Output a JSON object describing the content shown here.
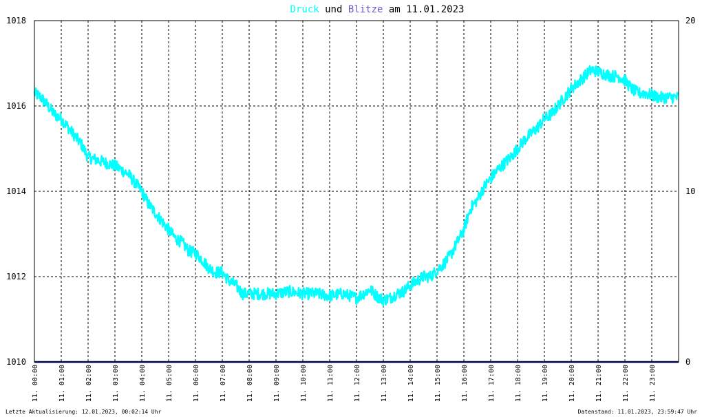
{
  "title": {
    "series1_word": "Druck",
    "connector": " und ",
    "series2_word": "Blitze",
    "date_part": " am 11.01.2023",
    "series1_color": "#00ffff",
    "series2_color": "#6a5acd"
  },
  "footer": {
    "left": "Letzte Aktualisierung: 12.01.2023, 00:02:14 Uhr",
    "right": "Datenstand: 11.01.2023, 23:59:47 Uhr"
  },
  "colors": {
    "pressure": "#00ffff",
    "lightning": "#000080",
    "grid": "#000000",
    "frame": "#000000"
  },
  "chart_data": {
    "type": "line",
    "grid": true,
    "y_left": {
      "min": 1010,
      "max": 1018,
      "ticks": [
        "1010",
        "1012",
        "1014",
        "1016",
        "1018"
      ]
    },
    "y_right": {
      "min": 0,
      "max": 20,
      "ticks": [
        "0",
        "10",
        "20"
      ]
    },
    "x": {
      "min": 0,
      "max": 24,
      "ticks": [
        "11. 00:00",
        "11. 01:00",
        "11. 02:00",
        "11. 03:00",
        "11. 04:00",
        "11. 05:00",
        "11. 06:00",
        "11. 07:00",
        "11. 08:00",
        "11. 09:00",
        "11. 10:00",
        "11. 11:00",
        "11. 12:00",
        "11. 13:00",
        "11. 14:00",
        "11. 15:00",
        "11. 16:00",
        "11. 17:00",
        "11. 18:00",
        "11. 19:00",
        "11. 20:00",
        "11. 21:00",
        "11. 22:00",
        "11. 23:00"
      ]
    },
    "series": [
      {
        "name": "Druck",
        "axis": "left",
        "x": [
          0,
          0.25,
          0.5,
          0.75,
          1,
          1.25,
          1.5,
          1.75,
          2,
          2.25,
          2.5,
          2.75,
          3,
          3.25,
          3.5,
          3.75,
          4,
          4.25,
          4.5,
          4.75,
          5,
          5.25,
          5.5,
          5.75,
          6,
          6.25,
          6.5,
          6.75,
          7,
          7.25,
          7.5,
          7.75,
          8,
          8.5,
          9,
          9.5,
          10,
          10.5,
          11,
          11.5,
          12,
          12.25,
          12.5,
          12.75,
          13,
          13.25,
          13.5,
          13.75,
          14,
          14.25,
          14.5,
          14.75,
          15,
          15.25,
          15.5,
          15.75,
          16,
          16.25,
          16.5,
          16.75,
          17,
          17.25,
          17.5,
          17.75,
          18,
          18.25,
          18.5,
          18.75,
          19,
          19.25,
          19.5,
          19.75,
          20,
          20.25,
          20.5,
          20.75,
          21,
          21.25,
          21.5,
          21.75,
          22,
          22.25,
          22.5,
          22.75,
          23,
          23.25,
          23.5,
          23.75,
          24
        ],
        "values": [
          1016.3,
          1016.2,
          1016.0,
          1015.8,
          1015.7,
          1015.5,
          1015.3,
          1015.1,
          1014.8,
          1014.75,
          1014.7,
          1014.65,
          1014.6,
          1014.5,
          1014.4,
          1014.2,
          1014.0,
          1013.7,
          1013.5,
          1013.3,
          1013.1,
          1012.9,
          1012.8,
          1012.6,
          1012.55,
          1012.4,
          1012.2,
          1012.1,
          1012.1,
          1011.9,
          1011.8,
          1011.6,
          1011.6,
          1011.6,
          1011.6,
          1011.65,
          1011.6,
          1011.6,
          1011.55,
          1011.6,
          1011.5,
          1011.6,
          1011.7,
          1011.55,
          1011.45,
          1011.5,
          1011.6,
          1011.65,
          1011.8,
          1011.9,
          1012.0,
          1012.0,
          1012.15,
          1012.3,
          1012.5,
          1012.8,
          1013.1,
          1013.6,
          1013.8,
          1014.1,
          1014.3,
          1014.5,
          1014.65,
          1014.8,
          1015.0,
          1015.2,
          1015.35,
          1015.5,
          1015.7,
          1015.8,
          1016.0,
          1016.2,
          1016.4,
          1016.55,
          1016.7,
          1016.85,
          1016.8,
          1016.75,
          1016.7,
          1016.7,
          1016.6,
          1016.4,
          1016.3,
          1016.3,
          1016.25,
          1016.2,
          1016.2,
          1016.2,
          1016.2
        ]
      },
      {
        "name": "Blitze",
        "axis": "right",
        "x": [
          0,
          24
        ],
        "values": [
          0,
          0
        ]
      }
    ]
  }
}
